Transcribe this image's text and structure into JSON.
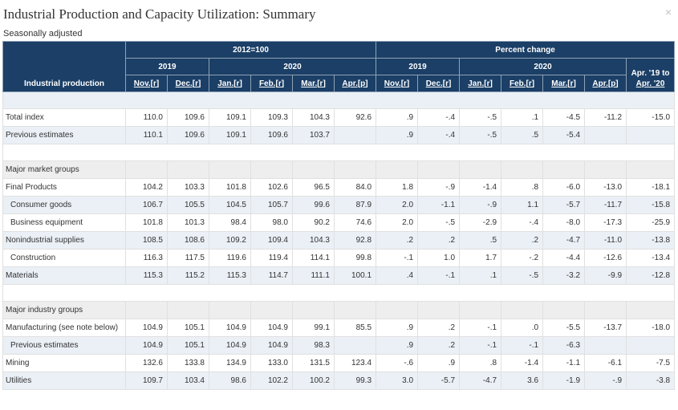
{
  "dialog": {
    "title": "Industrial Production and Capacity Utilization: Summary",
    "close_glyph": "×",
    "subtitle": "Seasonally adjusted"
  },
  "table": {
    "row_header": "Industrial production",
    "group_index": "2012=100",
    "group_pct": "Percent change",
    "year_2019": "2019",
    "year_2020": "2020",
    "last_col_line1": "Apr. '19 to",
    "last_col_line2": "Apr. '20",
    "months": [
      "Nov.[r]",
      "Dec.[r]",
      "Jan.[r]",
      "Feb.[r]",
      "Mar.[r]",
      "Apr.[p]"
    ],
    "pct_months": [
      "Nov.[r]",
      "Dec.[r]",
      "Jan.[r]",
      "Feb.[r]",
      "Mar.[r]",
      "Apr.[p]"
    ],
    "rows": [
      {
        "label": "Total index",
        "vals": [
          "110.0",
          "109.6",
          "109.1",
          "109.3",
          "104.3",
          "92.6",
          ".9",
          "-.4",
          "-.5",
          ".1",
          "-4.5",
          "-11.2",
          "-15.0"
        ]
      },
      {
        "label": "Previous estimates",
        "vals": [
          "110.1",
          "109.6",
          "109.1",
          "109.6",
          "103.7",
          "",
          ".9",
          "-.4",
          "-.5",
          ".5",
          "-5.4",
          "",
          ""
        ]
      },
      {
        "label": "Major market groups"
      },
      {
        "label": "Final Products",
        "vals": [
          "104.2",
          "103.3",
          "101.8",
          "102.6",
          "96.5",
          "84.0",
          "1.8",
          "-.9",
          "-1.4",
          ".8",
          "-6.0",
          "-13.0",
          "-18.1"
        ]
      },
      {
        "label": "Consumer goods",
        "vals": [
          "106.7",
          "105.5",
          "104.5",
          "105.7",
          "99.6",
          "87.9",
          "2.0",
          "-1.1",
          "-.9",
          "1.1",
          "-5.7",
          "-11.7",
          "-15.8"
        ]
      },
      {
        "label": "Business equipment",
        "vals": [
          "101.8",
          "101.3",
          "98.4",
          "98.0",
          "90.2",
          "74.6",
          "2.0",
          "-.5",
          "-2.9",
          "-.4",
          "-8.0",
          "-17.3",
          "-25.9"
        ]
      },
      {
        "label": "Nonindustrial supplies",
        "vals": [
          "108.5",
          "108.6",
          "109.2",
          "109.4",
          "104.3",
          "92.8",
          ".2",
          ".2",
          ".5",
          ".2",
          "-4.7",
          "-11.0",
          "-13.8"
        ]
      },
      {
        "label": "Construction",
        "vals": [
          "116.3",
          "117.5",
          "119.6",
          "119.4",
          "114.1",
          "99.8",
          "-.1",
          "1.0",
          "1.7",
          "-.2",
          "-4.4",
          "-12.6",
          "-13.4"
        ]
      },
      {
        "label": "Materials",
        "vals": [
          "115.3",
          "115.2",
          "115.3",
          "114.7",
          "111.1",
          "100.1",
          ".4",
          "-.1",
          ".1",
          "-.5",
          "-3.2",
          "-9.9",
          "-12.8"
        ]
      },
      {
        "label": "Major industry groups"
      },
      {
        "label": "Manufacturing (see note below)",
        "vals": [
          "104.9",
          "105.1",
          "104.9",
          "104.9",
          "99.1",
          "85.5",
          ".9",
          ".2",
          "-.1",
          ".0",
          "-5.5",
          "-13.7",
          "-18.0"
        ]
      },
      {
        "label": "Previous estimates",
        "vals": [
          "104.9",
          "105.1",
          "104.9",
          "104.9",
          "98.3",
          "",
          ".9",
          ".2",
          "-.1",
          "-.1",
          "-6.3",
          "",
          ""
        ]
      },
      {
        "label": "Mining",
        "vals": [
          "132.6",
          "133.8",
          "134.9",
          "133.0",
          "131.5",
          "123.4",
          "-.6",
          ".9",
          ".8",
          "-1.4",
          "-1.1",
          "-6.1",
          "-7.5"
        ]
      },
      {
        "label": "Utilities",
        "vals": [
          "109.7",
          "103.4",
          "98.6",
          "102.2",
          "100.2",
          "99.3",
          "3.0",
          "-5.7",
          "-4.7",
          "3.6",
          "-1.9",
          "-.9",
          "-3.8"
        ]
      }
    ]
  }
}
